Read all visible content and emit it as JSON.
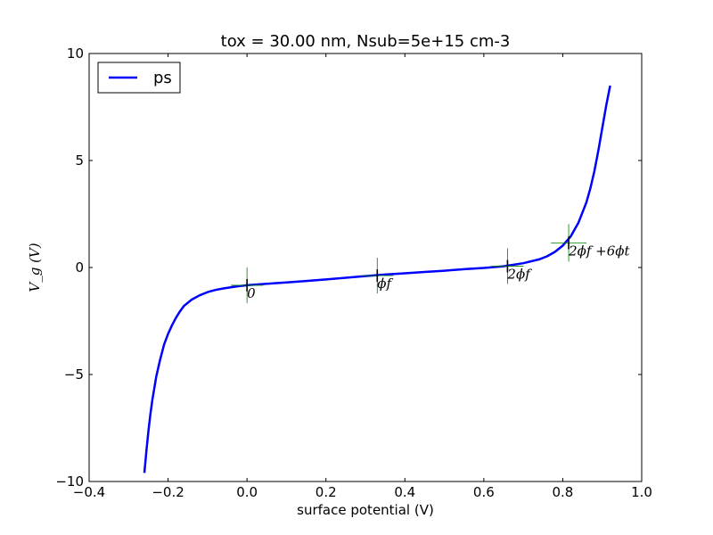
{
  "chart_data": {
    "type": "line",
    "title": "tox = 30.00 nm, Nsub=5e+15 cm-3",
    "xlabel": "surface potential (V)",
    "ylabel": "V_g (V)",
    "xlim": [
      -0.4,
      1.0
    ],
    "ylim": [
      -10,
      10
    ],
    "x_ticks": [
      -0.4,
      -0.2,
      0.0,
      0.2,
      0.4,
      0.6,
      0.8,
      1.0
    ],
    "x_tick_labels": [
      "−0.4",
      "−0.2",
      "0.0",
      "0.2",
      "0.4",
      "0.6",
      "0.8",
      "1.0"
    ],
    "y_ticks": [
      -10,
      -5,
      0,
      5,
      10
    ],
    "y_tick_labels": [
      "−10",
      "−5",
      "0",
      "5",
      "10"
    ],
    "grid": false,
    "legend": {
      "placement": "top-left",
      "entries": [
        "ps"
      ]
    },
    "series": [
      {
        "name": "ps",
        "color": "#0000ff",
        "x": [
          -0.26,
          -0.255,
          -0.25,
          -0.245,
          -0.24,
          -0.23,
          -0.22,
          -0.21,
          -0.2,
          -0.19,
          -0.18,
          -0.17,
          -0.16,
          -0.14,
          -0.12,
          -0.1,
          -0.08,
          -0.06,
          -0.04,
          -0.02,
          0.0,
          0.05,
          0.1,
          0.15,
          0.2,
          0.25,
          0.3,
          0.35,
          0.4,
          0.45,
          0.5,
          0.55,
          0.6,
          0.65,
          0.7,
          0.74,
          0.76,
          0.78,
          0.8,
          0.82,
          0.84,
          0.86,
          0.87,
          0.88,
          0.89,
          0.9,
          0.91,
          0.92
        ],
        "y": [
          -9.6,
          -8.6,
          -7.7,
          -6.9,
          -6.2,
          -5.1,
          -4.3,
          -3.6,
          -3.1,
          -2.7,
          -2.35,
          -2.05,
          -1.8,
          -1.5,
          -1.3,
          -1.15,
          -1.05,
          -0.98,
          -0.92,
          -0.87,
          -0.83,
          -0.76,
          -0.7,
          -0.63,
          -0.56,
          -0.48,
          -0.4,
          -0.33,
          -0.27,
          -0.21,
          -0.15,
          -0.08,
          -0.02,
          0.06,
          0.2,
          0.38,
          0.52,
          0.73,
          1.02,
          1.45,
          2.1,
          3.05,
          3.7,
          4.5,
          5.45,
          6.5,
          7.55,
          8.5
        ]
      }
    ],
    "annotations": [
      {
        "label": "0",
        "x": 0.0,
        "y": -0.83
      },
      {
        "label": "ϕf",
        "x": 0.33,
        "y": -0.38
      },
      {
        "label": "2ϕf",
        "x": 0.66,
        "y": 0.06
      },
      {
        "label": "2ϕf +6ϕt",
        "x": 0.815,
        "y": 1.15
      }
    ],
    "marker_color": "#008000"
  }
}
